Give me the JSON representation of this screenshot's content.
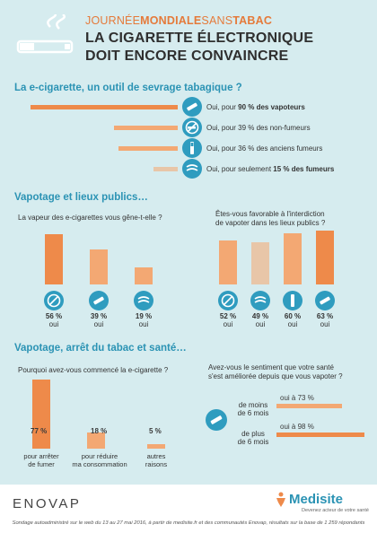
{
  "header": {
    "event_light": "JOURNÉE",
    "event_bold": "MONDIALE",
    "event_light2": "SANS",
    "event_bold2": "TABAC",
    "title_line1": "LA CIGARETTE ÉLECTRONIQUE",
    "title_line2": "DOIT ENCORE CONVAINCRE"
  },
  "colors": {
    "background": "#d6ecef",
    "accent_dark": "#ee8a4a",
    "accent_mid": "#f3a873",
    "accent_light": "#e8c6a8",
    "blue": "#2f9cbf"
  },
  "icons": [
    "e-cigarette-icon",
    "no-smoking-icon",
    "vapor-cloud-icon"
  ],
  "chart_data": [
    {
      "type": "bar",
      "orientation": "horizontal",
      "title": "La e-cigarette, un outil de sevrage tabagique ?",
      "categories": [
        "vapoteurs",
        "non-fumeurs",
        "anciens fumeurs",
        "fumeurs"
      ],
      "values": [
        90,
        39,
        36,
        15
      ],
      "labels": [
        {
          "pre": "Oui, pour ",
          "bold": "90 % des vapoteurs",
          "post": ""
        },
        {
          "pre": "Oui, pour 39 % des non-fumeurs",
          "bold": "",
          "post": ""
        },
        {
          "pre": "Oui, pour 36 % des anciens fumeurs",
          "bold": "",
          "post": ""
        },
        {
          "pre": "Oui, pour seulement ",
          "bold": "15 % des fumeurs",
          "post": ""
        }
      ],
      "xlim": [
        0,
        100
      ]
    },
    {
      "type": "bar",
      "section": "Vapotage et lieux publics…",
      "question": "La vapeur des e-cigarettes vous gêne-t-elle ?",
      "values": [
        56,
        39,
        19
      ],
      "value_labels": [
        "56 %",
        "39 %",
        "19 %"
      ],
      "sublabels": [
        "oui",
        "oui",
        "oui"
      ],
      "ylim": [
        0,
        100
      ]
    },
    {
      "type": "bar",
      "question_line1": "Êtes-vous favorable à l'interdiction",
      "question_line2": "de vapoter dans les lieux publics ?",
      "values": [
        52,
        49,
        60,
        63
      ],
      "value_labels": [
        "52 %",
        "49 %",
        "60 %",
        "63 %"
      ],
      "sublabels": [
        "oui",
        "oui",
        "oui",
        "oui"
      ],
      "ylim": [
        0,
        100
      ]
    },
    {
      "type": "bar",
      "section": "Vapotage, arrêt du tabac et santé…",
      "question": "Pourquoi avez-vous commencé la e-cigarette ?",
      "values": [
        77,
        18,
        5
      ],
      "value_labels": [
        "77 %",
        "18 %",
        "5 %"
      ],
      "categories": [
        [
          "pour arrêter",
          "de fumer"
        ],
        [
          "pour réduire",
          "ma consommation"
        ],
        [
          "autres",
          "raisons"
        ]
      ],
      "ylim": [
        0,
        100
      ]
    },
    {
      "type": "bar",
      "orientation": "horizontal",
      "question_line1": "Avez-vous le sentiment que votre santé",
      "question_line2": "s'est améliorée depuis que vous vapoter ?",
      "categories": [
        [
          "de moins",
          "de 6 mois"
        ],
        [
          "de plus",
          "de 6 mois"
        ]
      ],
      "values": [
        73,
        98
      ],
      "value_labels": [
        "oui à 73 %",
        "oui à 98 %"
      ],
      "xlim": [
        0,
        100
      ]
    }
  ],
  "footer": {
    "brand_left": "ENOVAP",
    "brand_right": "Medisite",
    "tagline": "Devenez acteur de votre santé",
    "note": "Sondage autoadministré sur le web du 13 au 27 mai 2016, à partir de medisite.fr et des communautés Enovap, résultats sur la base de 1 259 répondants"
  }
}
